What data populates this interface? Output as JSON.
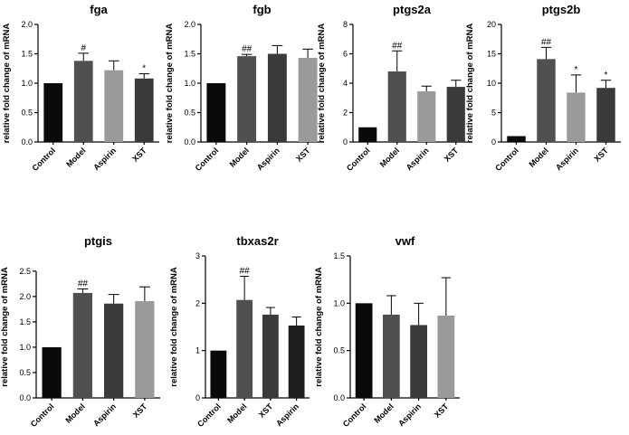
{
  "chart_data": [
    {
      "type": "bar",
      "title": "fga",
      "ylabel": "relative fold change of mRNA",
      "ylim": [
        0,
        2.0
      ],
      "yticks": [
        0,
        0.5,
        1.0,
        1.5,
        2.0
      ],
      "ytick_labels": [
        "0.0",
        "0.5",
        "1.0",
        "1.5",
        "2.0"
      ],
      "categories": [
        "Control",
        "Model",
        "Aspirin",
        "XST"
      ],
      "values": [
        1.0,
        1.38,
        1.22,
        1.08
      ],
      "errors": [
        0,
        0.13,
        0.16,
        0.08
      ],
      "annotations": [
        "",
        "#",
        "",
        "*"
      ],
      "colors": [
        "#0a0a0a",
        "#505050",
        "#9a9a9a",
        "#3a3a3a"
      ]
    },
    {
      "type": "bar",
      "title": "fgb",
      "ylabel": "relative fold change of mRNA",
      "ylim": [
        0,
        2.0
      ],
      "yticks": [
        0,
        0.5,
        1.0,
        1.5,
        2.0
      ],
      "ytick_labels": [
        "0.0",
        "0.5",
        "1.0",
        "1.5",
        "2.0"
      ],
      "categories": [
        "Control",
        "Model",
        "Aspirin",
        "XST"
      ],
      "values": [
        1.0,
        1.46,
        1.5,
        1.43
      ],
      "errors": [
        0,
        0.03,
        0.14,
        0.15
      ],
      "annotations": [
        "",
        "##",
        "",
        ""
      ],
      "colors": [
        "#0a0a0a",
        "#505050",
        "#3a3a3a",
        "#9a9a9a"
      ]
    },
    {
      "type": "bar",
      "title": "ptgs2a",
      "ylabel": "relative fold change of mRNA",
      "ylim": [
        0,
        8
      ],
      "yticks": [
        0,
        2,
        4,
        6,
        8
      ],
      "ytick_labels": [
        "0",
        "2",
        "4",
        "6",
        "8"
      ],
      "categories": [
        "Control",
        "Model",
        "Aspirin",
        "XST"
      ],
      "values": [
        1.0,
        4.8,
        3.45,
        3.75
      ],
      "errors": [
        0,
        1.4,
        0.35,
        0.45
      ],
      "annotations": [
        "",
        "##",
        "",
        ""
      ],
      "colors": [
        "#0a0a0a",
        "#505050",
        "#9a9a9a",
        "#3a3a3a"
      ]
    },
    {
      "type": "bar",
      "title": "ptgs2b",
      "ylabel": "relative fold change of mRNA",
      "ylim": [
        0,
        20
      ],
      "yticks": [
        0,
        5,
        10,
        15,
        20
      ],
      "ytick_labels": [
        "0",
        "5",
        "10",
        "15",
        "20"
      ],
      "categories": [
        "Control",
        "Model",
        "Aspirin",
        "XST"
      ],
      "values": [
        1.0,
        14.1,
        8.4,
        9.2
      ],
      "errors": [
        0,
        2.0,
        3.0,
        1.3
      ],
      "annotations": [
        "",
        "##",
        "*",
        "*"
      ],
      "colors": [
        "#0a0a0a",
        "#505050",
        "#9a9a9a",
        "#3a3a3a"
      ]
    },
    {
      "type": "bar",
      "title": "ptgis",
      "ylabel": "relative fold change of mRNA",
      "ylim": [
        0,
        2.8
      ],
      "yticks": [
        0,
        0.5,
        1.0,
        1.5,
        2.0,
        2.5
      ],
      "ytick_labels": [
        "0.0",
        "0.5",
        "1.0",
        "1.5",
        "2.0",
        "2.5"
      ],
      "categories": [
        "Control",
        "Model",
        "Aspirin",
        "XST"
      ],
      "values": [
        1.0,
        2.07,
        1.86,
        1.91
      ],
      "errors": [
        0,
        0.08,
        0.18,
        0.28
      ],
      "annotations": [
        "",
        "##",
        "",
        ""
      ],
      "colors": [
        "#0a0a0a",
        "#505050",
        "#3a3a3a",
        "#9a9a9a"
      ]
    },
    {
      "type": "bar",
      "title": "tbxas2r",
      "ylabel": "relative fold change of mRNA",
      "ylim": [
        0,
        3
      ],
      "yticks": [
        0,
        1,
        2,
        3
      ],
      "ytick_labels": [
        "0",
        "1",
        "2",
        "3"
      ],
      "categories": [
        "Control",
        "Model",
        "XST",
        "Aspirin"
      ],
      "values": [
        1.0,
        2.07,
        1.76,
        1.53
      ],
      "errors": [
        0,
        0.5,
        0.15,
        0.18
      ],
      "annotations": [
        "",
        "##",
        "",
        ""
      ],
      "colors": [
        "#0a0a0a",
        "#505050",
        "#3a3a3a",
        "#1e1e1e"
      ]
    },
    {
      "type": "bar",
      "title": "vwf",
      "ylabel": "relative fold change of mRNA",
      "ylim": [
        0,
        1.5
      ],
      "yticks": [
        0,
        0.5,
        1.0,
        1.5
      ],
      "ytick_labels": [
        "0.0",
        "0.5",
        "1.0",
        "1.5"
      ],
      "categories": [
        "Control",
        "Model",
        "Aspirin",
        "XST"
      ],
      "values": [
        1.0,
        0.88,
        0.77,
        0.87
      ],
      "errors": [
        0,
        0.2,
        0.23,
        0.4
      ],
      "annotations": [
        "",
        "",
        "",
        ""
      ],
      "colors": [
        "#0a0a0a",
        "#505050",
        "#3a3a3a",
        "#9a9a9a"
      ]
    }
  ]
}
